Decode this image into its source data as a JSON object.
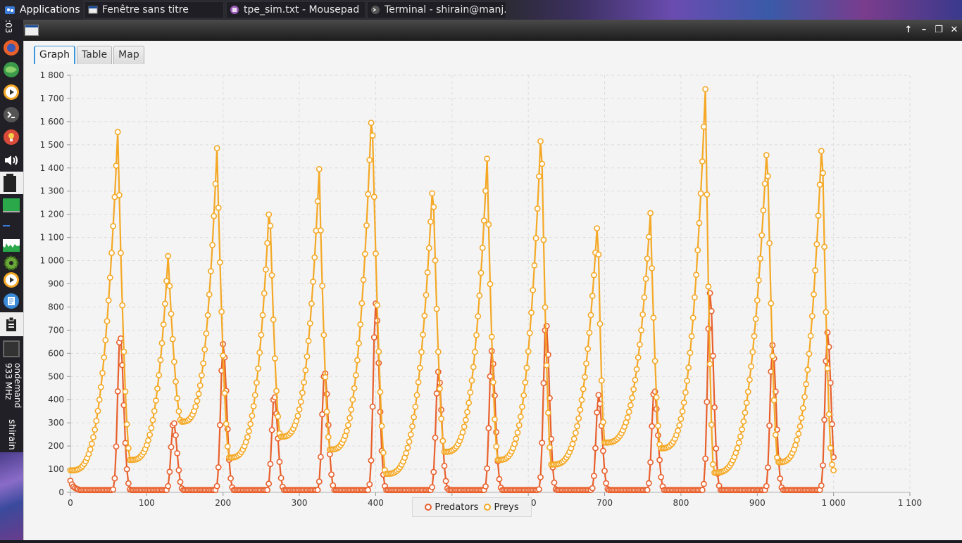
{
  "taskbar": {
    "apps_label": "Applications",
    "tasks": [
      {
        "label": "Fenêtre sans titre"
      },
      {
        "label": "tpe_sim.txt - Mousepad"
      },
      {
        "label": "Terminal - shirain@manj..."
      }
    ]
  },
  "sidepanel": {
    "clock": ":03",
    "cpu_info": "933 MHz",
    "governor": "ondemand",
    "user": "shirain"
  },
  "tabs": [
    {
      "label": "Graph",
      "active": true
    },
    {
      "label": "Table",
      "active": false
    },
    {
      "label": "Map",
      "active": false
    }
  ],
  "colors": {
    "predators": "#e8602c",
    "preys": "#f4a825",
    "grid": "#dcdcdc"
  },
  "chart_data": {
    "type": "line",
    "markers": "circle",
    "x_ticks": [
      "0",
      "100",
      "200",
      "300",
      "400",
      "500",
      "600",
      "700",
      "800",
      "900",
      "1 000",
      "1 100"
    ],
    "y_ticks": [
      "0",
      "100",
      "200",
      "300",
      "400",
      "500",
      "600",
      "700",
      "800",
      "900",
      "1 000",
      "1 100",
      "1 200",
      "1 300",
      "1 400",
      "1 500",
      "1 600",
      "1 700",
      "1 800"
    ],
    "xlim": [
      0,
      1100
    ],
    "ylim": [
      0,
      1800
    ],
    "grid": true,
    "legend": "bottom-center",
    "series": [
      {
        "name": "Predators",
        "key": "predators",
        "peaks": [
          [
            65,
            680
          ],
          [
            135,
            305
          ],
          [
            200,
            640
          ],
          [
            267,
            420
          ],
          [
            333,
            525
          ],
          [
            400,
            815
          ],
          [
            482,
            520
          ],
          [
            552,
            610
          ],
          [
            623,
            735
          ],
          [
            692,
            420
          ],
          [
            765,
            445
          ],
          [
            838,
            860
          ],
          [
            920,
            635
          ],
          [
            992,
            690
          ]
        ],
        "base": 10,
        "start": 50
      },
      {
        "name": "Preys",
        "key": "preys",
        "peaks": [
          [
            62,
            1555
          ],
          [
            128,
            1020
          ],
          [
            192,
            1485
          ],
          [
            261,
            1265
          ],
          [
            326,
            1395
          ],
          [
            395,
            1680
          ],
          [
            475,
            1355
          ],
          [
            546,
            1440
          ],
          [
            617,
            1595
          ],
          [
            691,
            1195
          ],
          [
            760,
            1205
          ],
          [
            832,
            1740
          ],
          [
            913,
            1520
          ],
          [
            985,
            1550
          ]
        ],
        "troughs": [
          [
            0,
            95
          ],
          [
            78,
            140
          ],
          [
            145,
            305
          ],
          [
            208,
            150
          ],
          [
            275,
            240
          ],
          [
            340,
            185
          ],
          [
            413,
            80
          ],
          [
            490,
            175
          ],
          [
            560,
            140
          ],
          [
            630,
            120
          ],
          [
            700,
            215
          ],
          [
            773,
            190
          ],
          [
            843,
            85
          ],
          [
            927,
            130
          ],
          [
            998,
            120
          ]
        ]
      }
    ]
  }
}
